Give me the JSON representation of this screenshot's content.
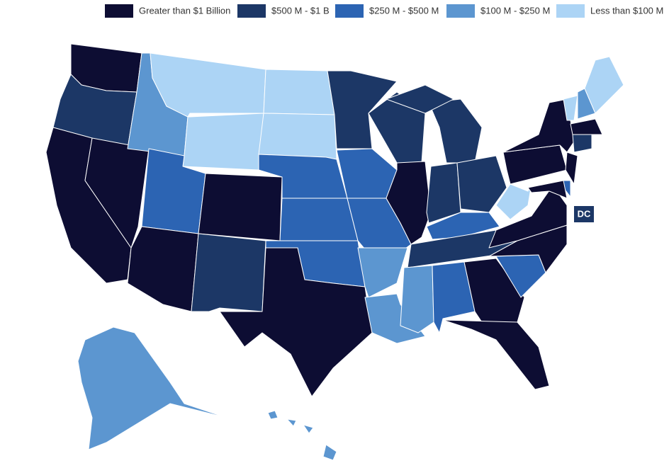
{
  "legend": {
    "items": [
      {
        "label": "Greater than $1 Billion",
        "color": "#0d0d33"
      },
      {
        "label": "$500 M - $1 B",
        "color": "#1c3766"
      },
      {
        "label": "$250 M - $500 M",
        "color": "#2c64b3"
      },
      {
        "label": "$100 M - $250 M",
        "color": "#5c96d0"
      },
      {
        "label": "Less than $100 M",
        "color": "#acd4f5"
      }
    ]
  },
  "dc_label": "DC"
}
